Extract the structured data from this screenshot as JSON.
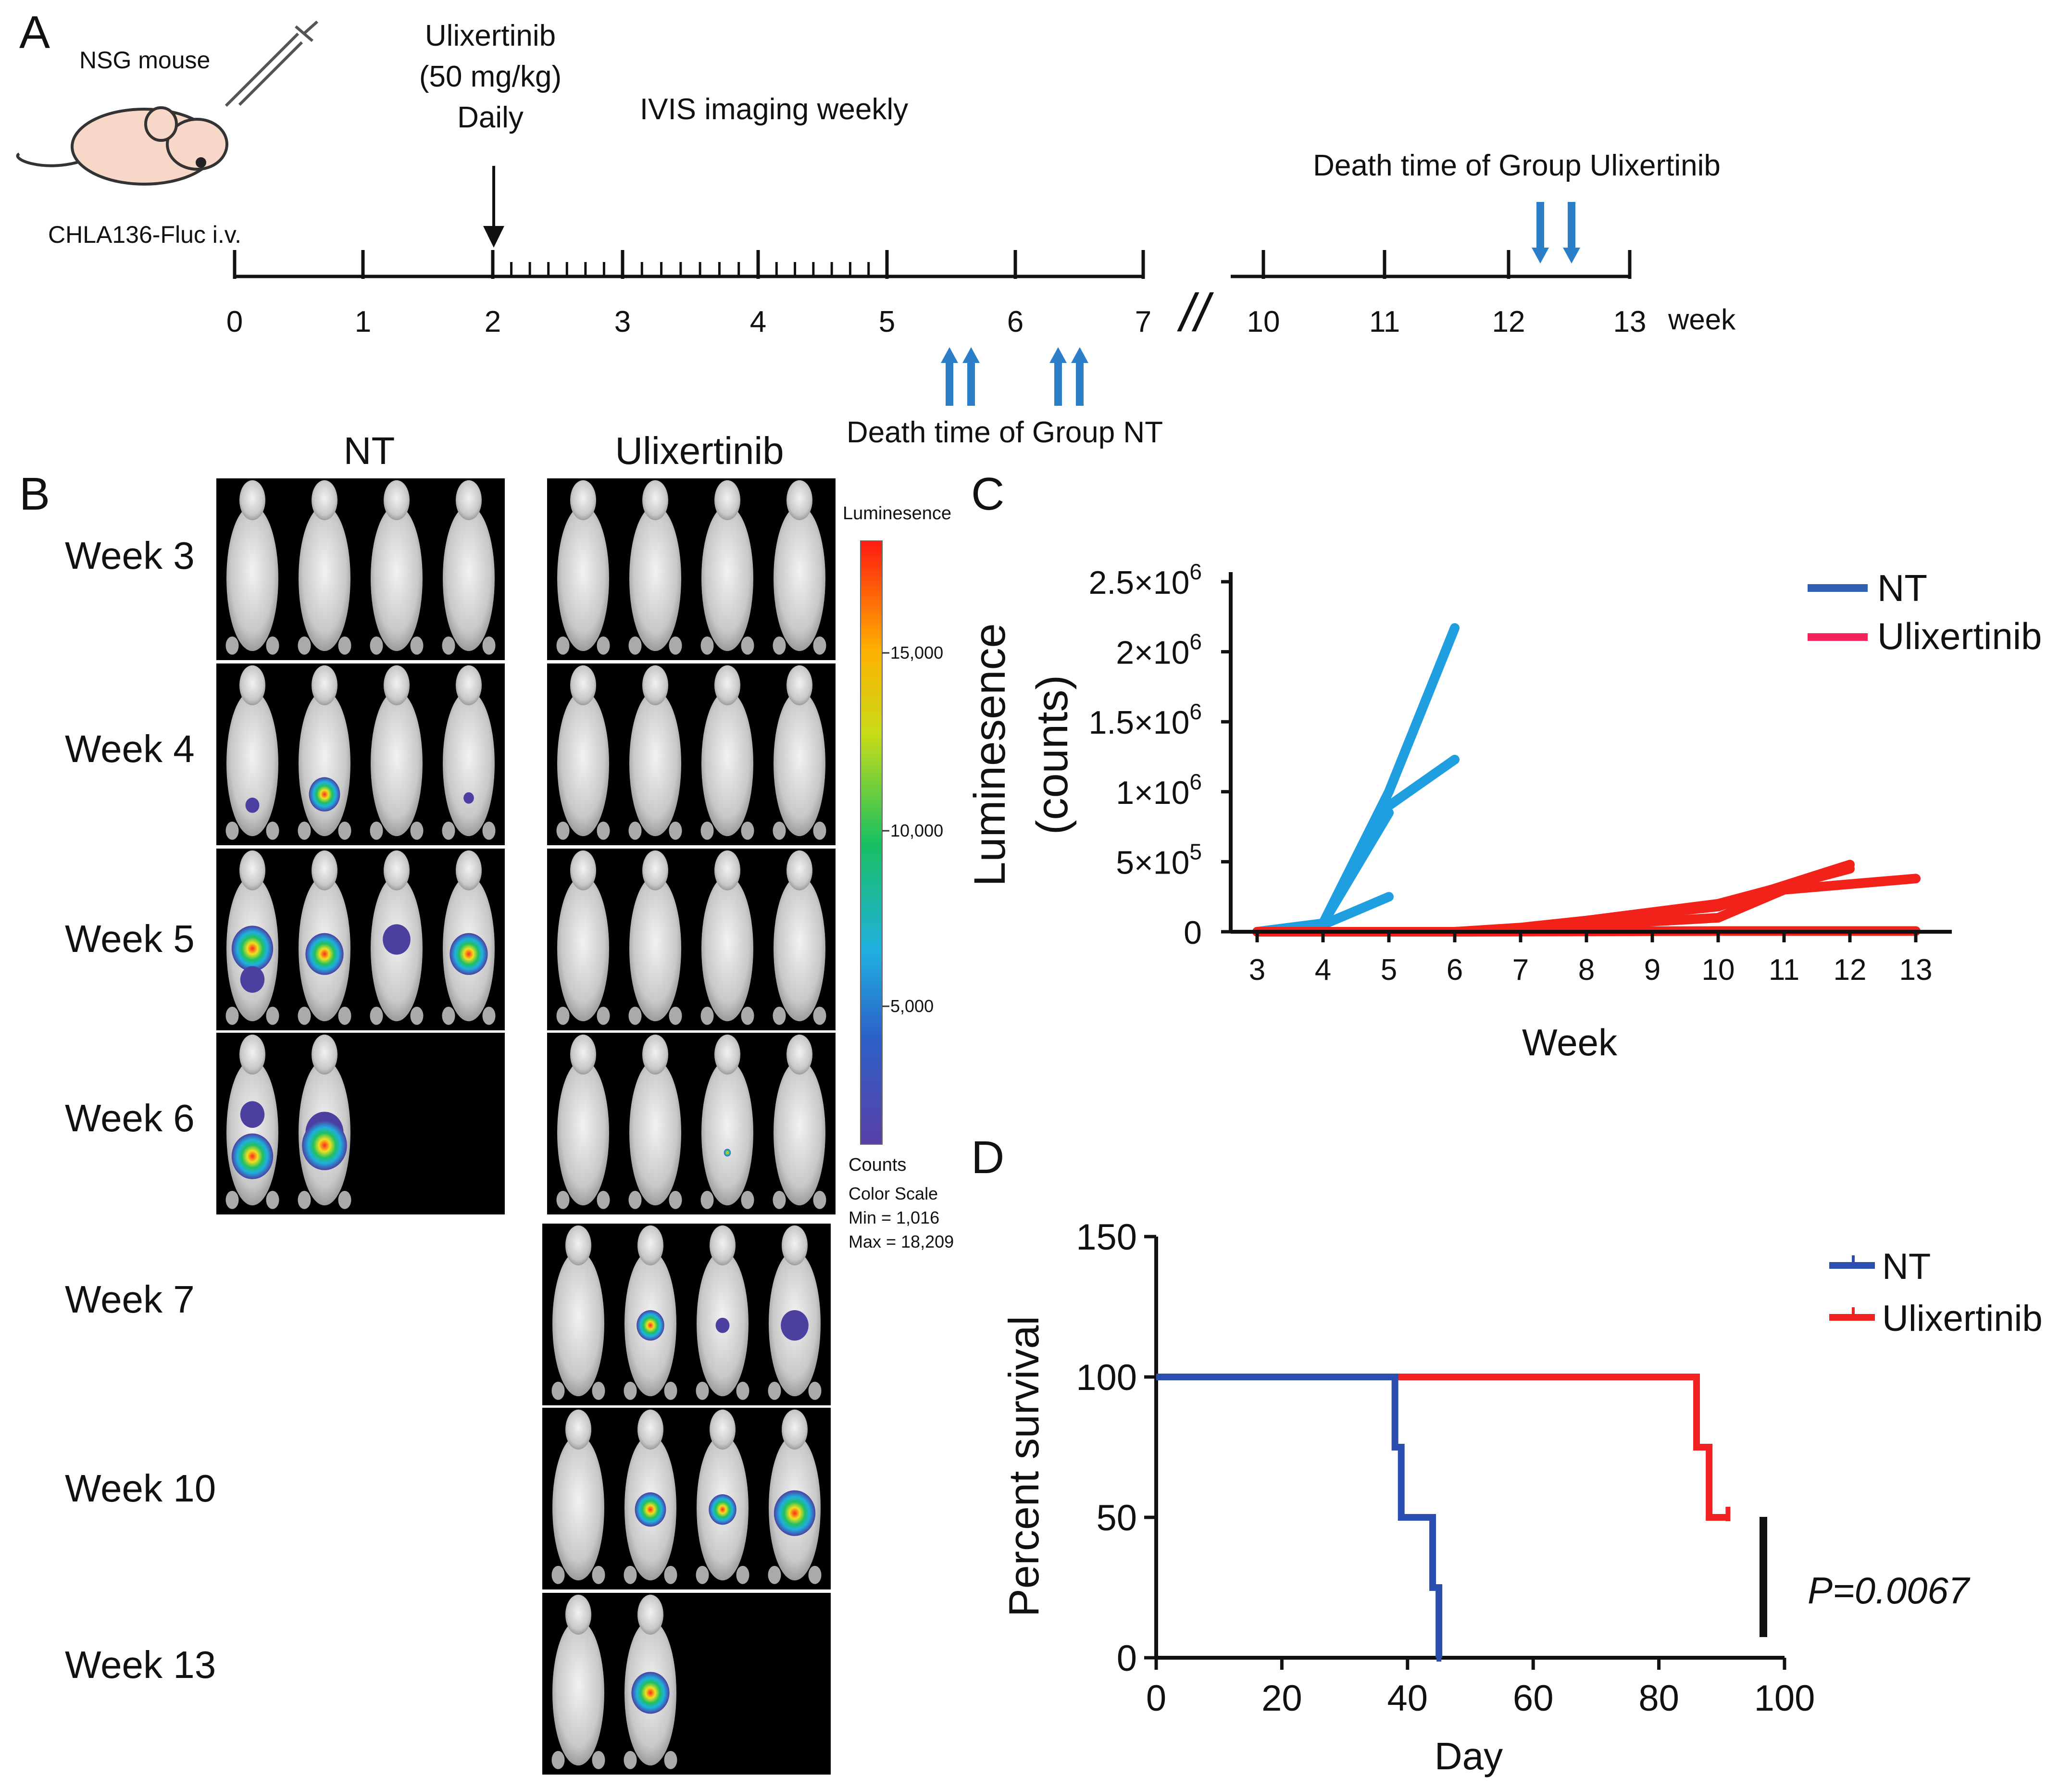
{
  "panels": {
    "a": "A",
    "b": "B",
    "c": "C",
    "d": "D"
  },
  "timeline": {
    "mouse_label": "NSG mouse",
    "injection_label": "CHLA136-Fluc i.v.",
    "drug_line1": "Ulixertinib",
    "drug_line2": "(50 mg/kg)",
    "drug_line3": "Daily",
    "imaging_label": "IVIS imaging weekly",
    "death_ulix_label": "Death time of Group Ulixertinib",
    "death_nt_label": "Death time of Group NT",
    "break_symbol": "//",
    "unit_label": "week",
    "ticks_left": [
      "0",
      "1",
      "2",
      "3",
      "4",
      "5",
      "6",
      "7"
    ],
    "ticks_right": [
      "10",
      "11",
      "12",
      "13"
    ]
  },
  "imaging": {
    "col_nt": "NT",
    "col_ulix": "Ulixertinib",
    "rows": [
      "Week 3",
      "Week 4",
      "Week 5",
      "Week 6",
      "Week 7",
      "Week 10",
      "Week 13"
    ],
    "nt_mice_per_row": [
      4,
      4,
      4,
      2
    ],
    "ulix_mice_per_row": [
      4,
      4,
      4,
      4,
      4,
      4,
      2
    ],
    "scale": {
      "title": "Luminesence",
      "ticks": [
        "15,000",
        "10,000",
        "5,000"
      ],
      "counts_label": "Counts",
      "color_scale_label": "Color Scale",
      "min_label": "Min = 1,016",
      "max_label": "Max = 18,209"
    },
    "colors": {
      "blob_low": "#4b3fa0",
      "blob_mid": "#1fb0e0",
      "blob_high": "#ff2a1a"
    }
  },
  "chart_data": [
    {
      "type": "line",
      "title": "",
      "xlabel": "Week",
      "ylabel_line1": "Luminesence",
      "ylabel_line2": "(counts)",
      "x_ticks": [
        "3",
        "4",
        "5",
        "6",
        "7",
        "8",
        "9",
        "10",
        "11",
        "12",
        "13"
      ],
      "y_tick_labels": [
        "0",
        "5×10",
        "1×10",
        "1.5×10",
        "2×10",
        "2.5×10"
      ],
      "y_tick_exponents": [
        "",
        "5",
        "6",
        "6",
        "6",
        "6"
      ],
      "y_ticks": [
        0,
        500000,
        1000000,
        1500000,
        2000000,
        2500000
      ],
      "xlim": [
        3,
        13
      ],
      "ylim": [
        0,
        2500000
      ],
      "legend": {
        "placement": "top-right",
        "entries": [
          {
            "name": "NT",
            "color": "#2e5fb0"
          },
          {
            "name": "Ulixertinib",
            "color": "#f2225a"
          }
        ]
      },
      "series": [
        {
          "name": "NT",
          "color": "#1f9ee0",
          "lines": [
            [
              [
                3,
                0
              ],
              [
                4,
                60000
              ],
              [
                5,
                1000000
              ],
              [
                6,
                2170000
              ]
            ],
            [
              [
                3,
                0
              ],
              [
                4,
                60000
              ],
              [
                5,
                900000
              ],
              [
                6,
                1230000
              ]
            ],
            [
              [
                3,
                0
              ],
              [
                4,
                60000
              ],
              [
                5,
                850000
              ]
            ],
            [
              [
                3,
                0
              ],
              [
                4,
                50000
              ],
              [
                5,
                250000
              ]
            ]
          ]
        },
        {
          "name": "Ulixertinib",
          "color": "#f2221a",
          "lines": [
            [
              [
                3,
                0
              ],
              [
                6,
                0
              ],
              [
                7,
                30000
              ],
              [
                10,
                180000
              ],
              [
                12,
                480000
              ]
            ],
            [
              [
                3,
                0
              ],
              [
                6,
                0
              ],
              [
                7,
                20000
              ],
              [
                10,
                100000
              ],
              [
                11,
                300000
              ],
              [
                13,
                380000
              ]
            ],
            [
              [
                3,
                0
              ],
              [
                6,
                0
              ],
              [
                7,
                20000
              ],
              [
                10,
                200000
              ],
              [
                12,
                450000
              ]
            ],
            [
              [
                3,
                0
              ],
              [
                6,
                0
              ],
              [
                10,
                5000
              ],
              [
                13,
                5000
              ]
            ]
          ]
        }
      ]
    },
    {
      "type": "line",
      "title": "",
      "xlabel": "Day",
      "ylabel": "Percent survival",
      "x_ticks": [
        0,
        20,
        40,
        60,
        80,
        100
      ],
      "y_ticks": [
        0,
        50,
        100,
        150
      ],
      "x_tick_labels": [
        "0",
        "20",
        "40",
        "60",
        "80",
        "100"
      ],
      "y_tick_labels": [
        "0",
        "50",
        "100",
        "150"
      ],
      "xlim": [
        0,
        100
      ],
      "ylim": [
        0,
        150
      ],
      "annotation": "P=0.0067",
      "legend": {
        "placement": "top-right",
        "entries": [
          {
            "name": "NT",
            "color": "#2a4fb0"
          },
          {
            "name": "Ulixertinib",
            "color": "#f22222"
          }
        ]
      },
      "series": [
        {
          "name": "NT",
          "color": "#2a4fb0",
          "steps": [
            [
              0,
              100
            ],
            [
              38,
              100
            ],
            [
              38,
              75
            ],
            [
              39,
              75
            ],
            [
              39,
              50
            ],
            [
              44,
              50
            ],
            [
              44,
              25
            ],
            [
              45,
              25
            ],
            [
              45,
              0
            ]
          ]
        },
        {
          "name": "Ulixertinib",
          "color": "#f22222",
          "steps": [
            [
              0,
              100
            ],
            [
              86,
              100
            ],
            [
              86,
              75
            ],
            [
              88,
              75
            ],
            [
              88,
              50
            ],
            [
              91,
              50
            ]
          ]
        }
      ]
    }
  ]
}
